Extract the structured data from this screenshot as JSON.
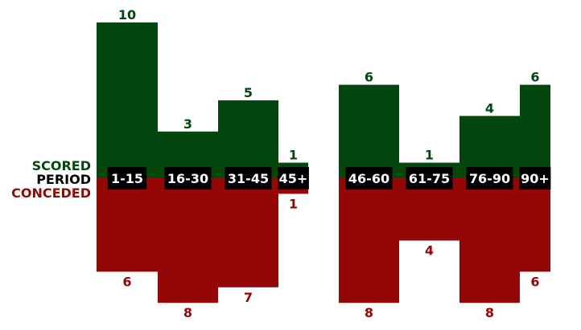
{
  "chart_data": {
    "type": "bar",
    "legend": {
      "scored": "SCORED",
      "period": "PERIOD",
      "conceded": "CONCEDED"
    },
    "colors": {
      "scored": "#03470f",
      "conceded": "#940707",
      "period_box": "#000000",
      "period_text": "#ffffff"
    },
    "categories": [
      "1-15",
      "16-30",
      "31-45",
      "45+",
      "46-60",
      "61-75",
      "76-90",
      "90+"
    ],
    "series": [
      {
        "name": "SCORED",
        "values": [
          10,
          3,
          5,
          1,
          6,
          1,
          4,
          6
        ]
      },
      {
        "name": "CONCEDED",
        "values": [
          6,
          8,
          7,
          1,
          8,
          4,
          8,
          6
        ]
      }
    ],
    "ylim": [
      -8,
      10
    ]
  }
}
